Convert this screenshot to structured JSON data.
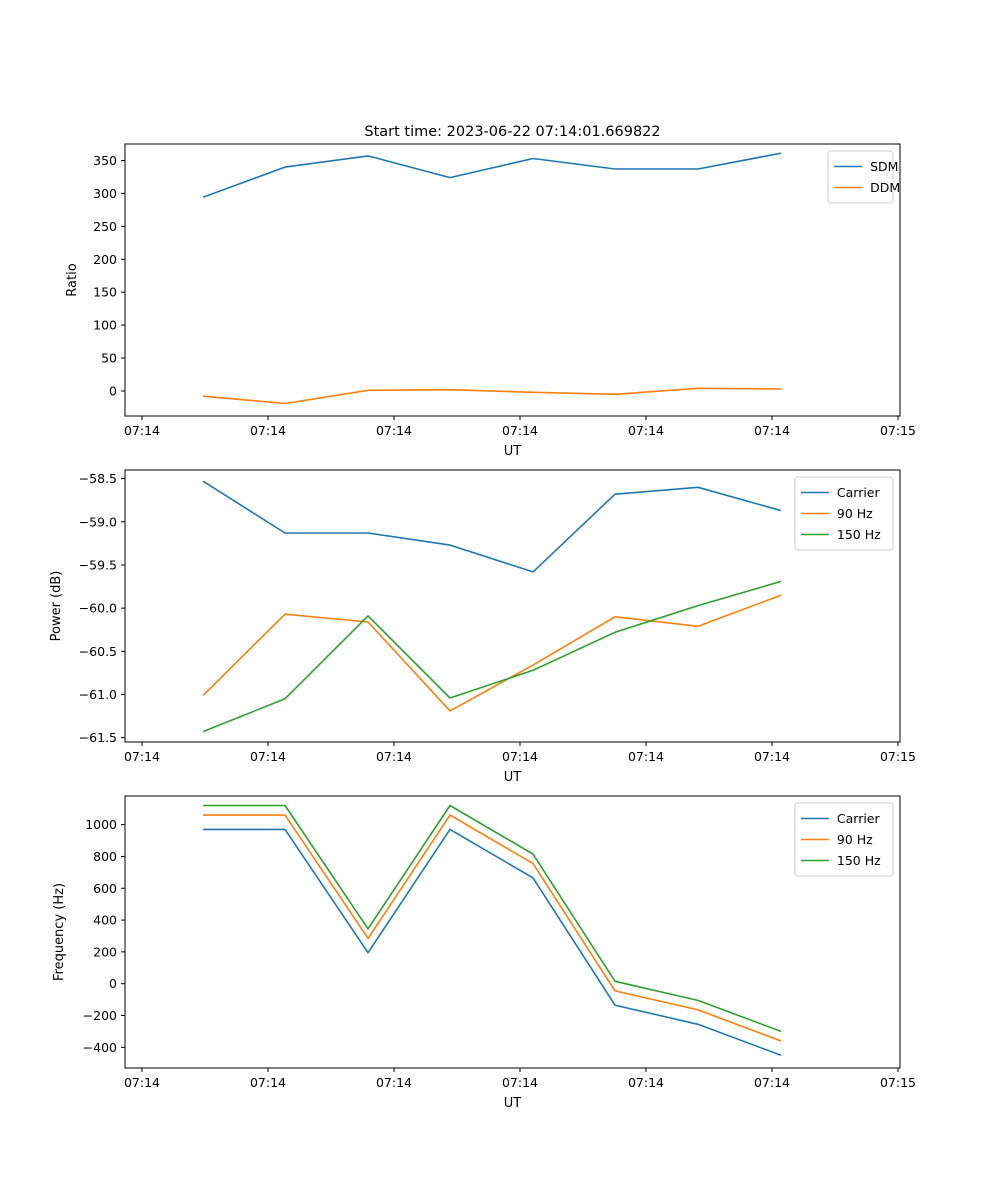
{
  "figure_title": "Start time: 2023-06-22 07:14:01.669822",
  "colors": {
    "blue": "#1f77b4",
    "orange": "#ff7f0e",
    "green": "#2ca02c"
  },
  "chart_data": [
    {
      "type": "line",
      "xlabel": "UT",
      "ylabel": "Ratio",
      "x_tick_labels": [
        "07:14",
        "07:14",
        "07:14",
        "07:14",
        "07:14",
        "07:14",
        "07:15"
      ],
      "y_ticks": [
        0,
        50,
        100,
        150,
        200,
        250,
        300,
        350
      ],
      "ylim": [
        -38,
        375
      ],
      "legend_position": "upper right",
      "series": [
        {
          "name": "SDM",
          "color": "#1f77b4",
          "values": [
            294,
            340,
            357,
            324,
            353,
            337,
            337,
            361
          ]
        },
        {
          "name": "DDM",
          "color": "#ff7f0e",
          "values": [
            -8,
            -19,
            1,
            2,
            -2,
            -5,
            4,
            3
          ]
        }
      ]
    },
    {
      "type": "line",
      "xlabel": "UT",
      "ylabel": "Power (dB)",
      "x_tick_labels": [
        "07:14",
        "07:14",
        "07:14",
        "07:14",
        "07:14",
        "07:14",
        "07:15"
      ],
      "y_ticks": [
        -61.5,
        -61.0,
        -60.5,
        -60.0,
        -59.5,
        -59.0,
        -58.5
      ],
      "y_tick_labels": [
        "−61.5",
        "−61.0",
        "−60.5",
        "−60.0",
        "−59.5",
        "−59.0",
        "−58.5"
      ],
      "ylim": [
        -61.55,
        -58.4
      ],
      "legend_position": "upper right",
      "series": [
        {
          "name": "Carrier",
          "color": "#1f77b4",
          "values": [
            -58.53,
            -59.13,
            -59.13,
            -59.27,
            -59.58,
            -58.68,
            -58.6,
            -58.87
          ]
        },
        {
          "name": "90 Hz",
          "color": "#ff7f0e",
          "values": [
            -61.01,
            -60.07,
            -60.16,
            -61.19,
            -60.66,
            -60.1,
            -60.21,
            -59.85
          ]
        },
        {
          "name": "150 Hz",
          "color": "#2ca02c",
          "values": [
            -61.43,
            -61.05,
            -60.09,
            -61.04,
            -60.72,
            -60.28,
            -59.97,
            -59.69
          ]
        }
      ]
    },
    {
      "type": "line",
      "xlabel": "UT",
      "ylabel": "Frequency (Hz)",
      "x_tick_labels": [
        "07:14",
        "07:14",
        "07:14",
        "07:14",
        "07:14",
        "07:14",
        "07:15"
      ],
      "y_ticks": [
        -400,
        -200,
        0,
        200,
        400,
        600,
        800,
        1000
      ],
      "y_tick_labels": [
        "−400",
        "−200",
        "0",
        "200",
        "400",
        "600",
        "800",
        "1000"
      ],
      "ylim": [
        -530,
        1180
      ],
      "legend_position": "upper right",
      "series": [
        {
          "name": "Carrier",
          "color": "#1f77b4",
          "values": [
            970,
            970,
            195,
            970,
            665,
            -135,
            -255,
            -450
          ]
        },
        {
          "name": "90 Hz",
          "color": "#ff7f0e",
          "values": [
            1060,
            1060,
            285,
            1060,
            755,
            -45,
            -165,
            -360
          ]
        },
        {
          "name": "150 Hz",
          "color": "#2ca02c",
          "values": [
            1120,
            1120,
            345,
            1120,
            815,
            15,
            -105,
            -300
          ]
        }
      ]
    }
  ]
}
